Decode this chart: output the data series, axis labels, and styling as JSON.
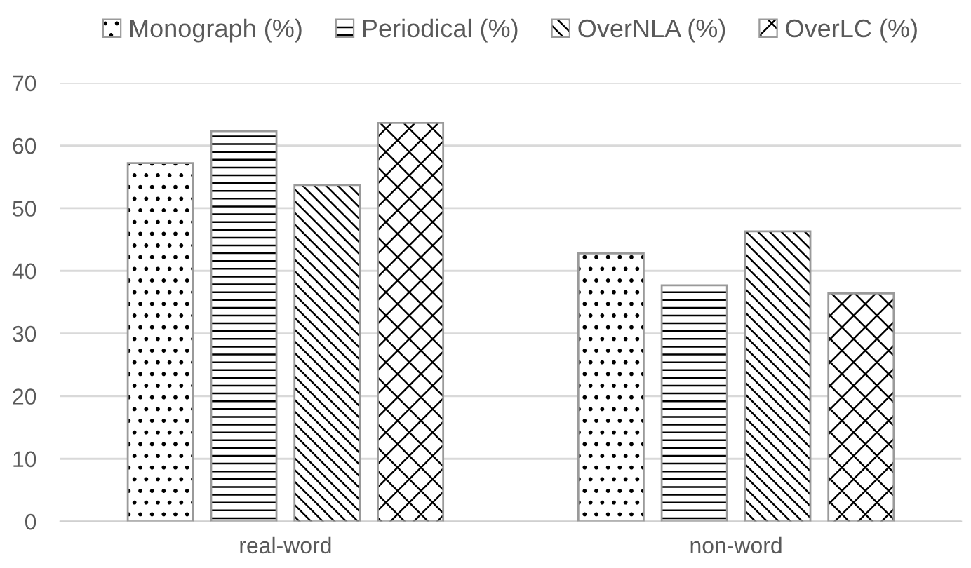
{
  "chart_data": {
    "type": "bar",
    "categories": [
      "real-word",
      "non-word"
    ],
    "series": [
      {
        "name": "Monograph (%)",
        "color": "#9a9a9a",
        "values": [
          57.2,
          42.8
        ]
      },
      {
        "name": "Periodical (%)",
        "color": "#9a9a9a",
        "values": [
          62.3,
          37.7
        ]
      },
      {
        "name": "OverNLA (%)",
        "color": "#9a9a9a",
        "values": [
          53.7,
          46.3
        ]
      },
      {
        "name": "OverLC (%)",
        "color": "#9a9a9a",
        "values": [
          63.6,
          36.4
        ]
      }
    ],
    "ylim": [
      0,
      70
    ],
    "yticks": [
      0,
      10,
      20,
      30,
      40,
      50,
      60,
      70
    ],
    "grid": "y",
    "legend": "top"
  }
}
